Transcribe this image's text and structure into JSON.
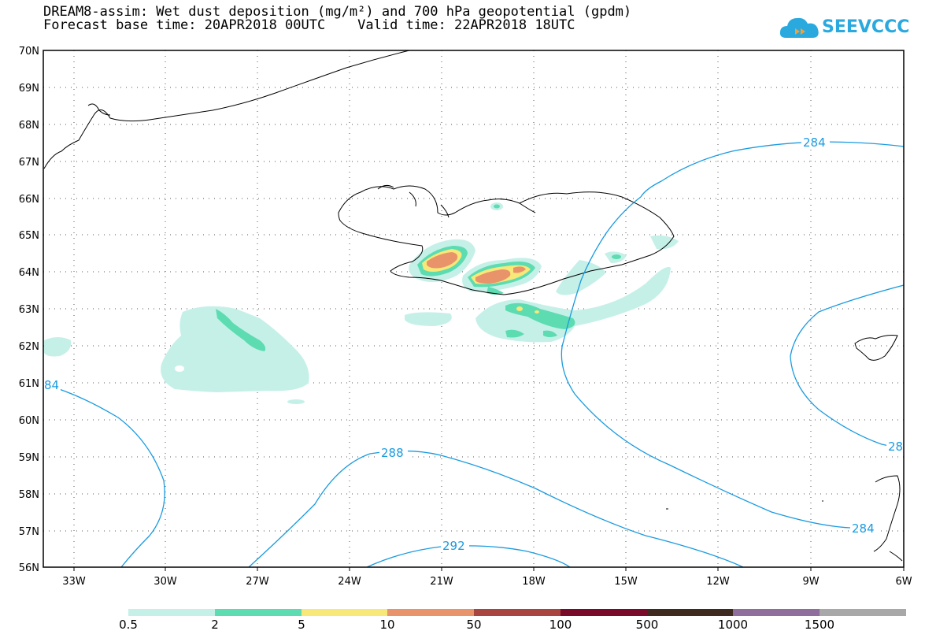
{
  "title_line1": "DREAM8-assim: Wet dust deposition (mg/m²) and 700 hPa geopotential (gpdm)",
  "title_line2": "Forecast base time: 20APR2018 00UTC    Valid time: 22APR2018 18UTC",
  "logo": {
    "text": "SEEVCCC",
    "icon": "cloud-logo-icon",
    "color": "#2aa9df"
  },
  "map": {
    "lat_labels": [
      "70N",
      "69N",
      "68N",
      "67N",
      "66N",
      "65N",
      "64N",
      "63N",
      "62N",
      "61N",
      "60N",
      "59N",
      "58N",
      "57N",
      "56N"
    ],
    "lon_labels": [
      "33W",
      "30W",
      "27W",
      "24W",
      "21W",
      "18W",
      "15W",
      "12W",
      "9W",
      "6W"
    ],
    "contour_labels": [
      {
        "text": "284",
        "level": 284
      },
      {
        "text": "84",
        "level": 284
      },
      {
        "text": "288",
        "level": 288
      },
      {
        "text": "28",
        "level": 288
      },
      {
        "text": "284",
        "level": 284
      },
      {
        "text": "292",
        "level": 292
      }
    ],
    "contour_color": "#1a9be0"
  },
  "legend": {
    "colors": [
      "#c5f0e8",
      "#5ddcb1",
      "#f7e879",
      "#e8936a",
      "#a9453e",
      "#7a0a2a",
      "#3e2a1e",
      "#8f6e9e",
      "#a8a8a8"
    ],
    "labels": [
      "0.5",
      "2",
      "5",
      "10",
      "50",
      "100",
      "500",
      "1000",
      "1500"
    ]
  }
}
